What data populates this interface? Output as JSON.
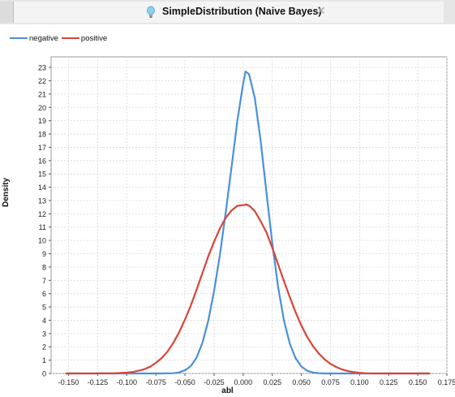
{
  "window": {
    "tab_title": "SimpleDistribution (Naive Bayes)",
    "tab_icon": "lightbulb-icon",
    "close_icon": "close-icon"
  },
  "chart_data": {
    "type": "line",
    "title": "",
    "xlabel": "abl",
    "ylabel": "Density",
    "xlim": [
      -0.165,
      0.175
    ],
    "ylim": [
      0,
      23.8
    ],
    "xticks": [
      "-0.150",
      "-0.125",
      "-0.100",
      "-0.075",
      "-0.050",
      "-0.025",
      "0.000",
      "0.025",
      "0.050",
      "0.075",
      "0.100",
      "0.125",
      "0.150",
      "0.175"
    ],
    "xtick_values": [
      -0.15,
      -0.125,
      -0.1,
      -0.075,
      -0.05,
      -0.025,
      0,
      0.025,
      0.05,
      0.075,
      0.1,
      0.125,
      0.15,
      0.175
    ],
    "yticks": [
      0,
      1,
      2,
      3,
      4,
      5,
      6,
      7,
      8,
      9,
      10,
      11,
      12,
      13,
      14,
      15,
      16,
      17,
      18,
      19,
      20,
      21,
      22,
      23
    ],
    "grid": true,
    "legend_position": "top-left",
    "series": [
      {
        "name": "negative",
        "color": "#4a90d9",
        "x": [
          -0.152,
          -0.14,
          -0.12,
          -0.1,
          -0.09,
          -0.08,
          -0.07,
          -0.06,
          -0.055,
          -0.05,
          -0.045,
          -0.04,
          -0.035,
          -0.03,
          -0.025,
          -0.02,
          -0.015,
          -0.01,
          -0.005,
          0.0,
          0.002,
          0.005,
          0.01,
          0.015,
          0.02,
          0.025,
          0.03,
          0.035,
          0.04,
          0.045,
          0.05,
          0.055,
          0.06,
          0.065,
          0.07,
          0.08,
          0.09,
          0.1,
          0.12,
          0.14,
          0.16
        ],
        "values": [
          0,
          0,
          0,
          0,
          0,
          0,
          0,
          0.02,
          0.08,
          0.24,
          0.55,
          1.2,
          2.3,
          3.95,
          6.2,
          8.9,
          12.1,
          15.5,
          19.0,
          21.8,
          22.7,
          22.5,
          20.7,
          17.5,
          13.6,
          9.8,
          6.5,
          4.0,
          2.25,
          1.15,
          0.52,
          0.2,
          0.07,
          0.02,
          0,
          0,
          0,
          0,
          0,
          0,
          0
        ]
      },
      {
        "name": "positive",
        "color": "#d9443a",
        "x": [
          -0.152,
          -0.13,
          -0.11,
          -0.1,
          -0.095,
          -0.09,
          -0.085,
          -0.08,
          -0.075,
          -0.07,
          -0.065,
          -0.06,
          -0.055,
          -0.05,
          -0.045,
          -0.04,
          -0.035,
          -0.03,
          -0.025,
          -0.02,
          -0.015,
          -0.01,
          -0.005,
          0.0,
          0.003,
          0.006,
          0.01,
          0.015,
          0.02,
          0.025,
          0.03,
          0.035,
          0.04,
          0.045,
          0.05,
          0.055,
          0.06,
          0.065,
          0.07,
          0.075,
          0.08,
          0.085,
          0.09,
          0.095,
          0.1,
          0.105,
          0.11,
          0.13,
          0.16
        ],
        "values": [
          0,
          0,
          0.02,
          0.06,
          0.11,
          0.2,
          0.32,
          0.5,
          0.8,
          1.15,
          1.65,
          2.3,
          3.1,
          4.05,
          5.1,
          6.3,
          7.55,
          8.8,
          9.9,
          10.9,
          11.7,
          12.25,
          12.6,
          12.65,
          12.7,
          12.55,
          12.2,
          11.45,
          10.6,
          9.45,
          8.2,
          6.95,
          5.75,
          4.6,
          3.6,
          2.75,
          2.05,
          1.5,
          1.05,
          0.72,
          0.48,
          0.3,
          0.18,
          0.1,
          0.05,
          0.02,
          0,
          0,
          0
        ]
      }
    ]
  }
}
